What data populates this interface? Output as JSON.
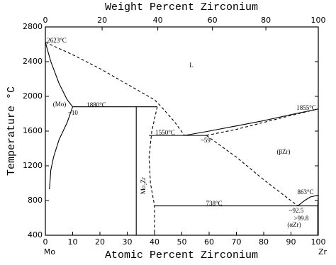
{
  "chart_data": {
    "type": "phase",
    "title": "Weight Percent Zirconium",
    "xlabel": "Atomic Percent Zirconium",
    "ylabel": "Temperature °C",
    "left_element": "Mo",
    "right_element": "Zr",
    "xlim": [
      0,
      100
    ],
    "xticks": [
      0,
      10,
      20,
      30,
      40,
      50,
      60,
      70,
      80,
      90,
      100
    ],
    "x2ticks": [
      {
        "value": 0,
        "label": "0"
      },
      {
        "value": 20.8,
        "label": "20"
      },
      {
        "value": 41.2,
        "label": "40"
      },
      {
        "value": 61.2,
        "label": "60"
      },
      {
        "value": 80.8,
        "label": "80"
      },
      {
        "value": 100,
        "label": "100"
      }
    ],
    "ylim": [
      400,
      2800
    ],
    "yticks": [
      400,
      800,
      1200,
      1600,
      2000,
      2400,
      2800
    ],
    "color": "#000000",
    "series": [
      {
        "style": "solid",
        "x": [
          0,
          2,
          5,
          8,
          10
        ],
        "values": [
          2623,
          2400,
          2150,
          1960,
          1880
        ]
      },
      {
        "style": "solid",
        "x": [
          10,
          8,
          5,
          3,
          2,
          1.5
        ],
        "values": [
          1880,
          1700,
          1500,
          1300,
          1150,
          930
        ]
      },
      {
        "style": "dashed",
        "x": [
          0,
          10,
          20,
          30,
          40,
          42.5,
          47,
          51
        ],
        "values": [
          2623,
          2480,
          2320,
          2140,
          1960,
          1880,
          1720,
          1550
        ]
      },
      {
        "style": "solid",
        "x": [
          10,
          41
        ],
        "values": [
          1880,
          1880
        ]
      },
      {
        "style": "solid",
        "x": [
          33.3,
          33.3
        ],
        "values": [
          1880,
          400
        ]
      },
      {
        "style": "dashed",
        "x": [
          41,
          39,
          38,
          38.5,
          40,
          40
        ],
        "values": [
          1880,
          1600,
          1300,
          1000,
          740,
          400
        ]
      },
      {
        "style": "solid",
        "x": [
          38,
          59
        ],
        "values": [
          1550,
          1550
        ]
      },
      {
        "style": "solid",
        "x": [
          51,
          60,
          70,
          80,
          90,
          100
        ],
        "values": [
          1550,
          1600,
          1660,
          1720,
          1790,
          1855
        ]
      },
      {
        "style": "dashed",
        "x": [
          59,
          70,
          80,
          90,
          100
        ],
        "values": [
          1550,
          1620,
          1700,
          1780,
          1855
        ]
      },
      {
        "style": "dashed",
        "x": [
          59,
          70,
          80,
          92.5
        ],
        "values": [
          1550,
          1300,
          1040,
          738
        ]
      },
      {
        "style": "solid",
        "x": [
          40,
          99.8
        ],
        "values": [
          738,
          738
        ]
      },
      {
        "style": "solid",
        "x": [
          92.5,
          95,
          97,
          100
        ],
        "values": [
          738,
          800,
          840,
          863
        ]
      },
      {
        "style": "solid",
        "x": [
          99.8,
          100
        ],
        "values": [
          738,
          863
        ]
      },
      {
        "style": "solid",
        "x": [
          99.8,
          99.8
        ],
        "values": [
          738,
          400
        ]
      }
    ],
    "annotations": [
      "2623°C",
      "L",
      "(Mo)",
      "~10",
      "1880°C",
      "1855°C",
      "1550°C",
      "~59",
      "(βZr)",
      "Mo₂Zr",
      "738°C",
      "863°C",
      "~92.5",
      ">99.8",
      "(αZr)"
    ]
  }
}
